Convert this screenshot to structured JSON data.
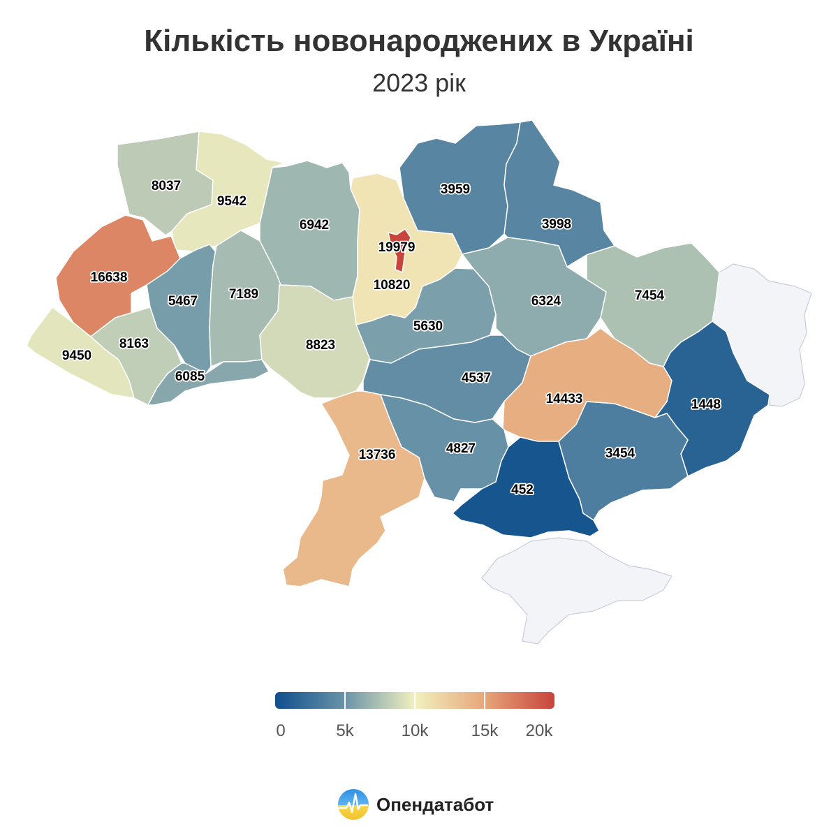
{
  "header": {
    "title": "Кількість новонароджених в Україні",
    "subtitle": "2023 рік"
  },
  "chart_data": {
    "type": "choropleth",
    "title": "Кількість новонароджених в Україні",
    "subtitle": "2023 рік",
    "colorscale": {
      "min": 0,
      "max": 20000,
      "stops": [
        "#0f4f8c",
        "#6a93a8",
        "#f2f0bf",
        "#e6a679",
        "#c8443c"
      ]
    },
    "regions": [
      {
        "name": "Волинська",
        "value": 8037
      },
      {
        "name": "Рівненська",
        "value": 9542
      },
      {
        "name": "Житомирська",
        "value": 6942
      },
      {
        "name": "Київська",
        "value": 10820
      },
      {
        "name": "м. Київ",
        "value": 19979
      },
      {
        "name": "Чернігівська",
        "value": 3959
      },
      {
        "name": "Сумська",
        "value": 3998
      },
      {
        "name": "Львівська",
        "value": 16638
      },
      {
        "name": "Тернопільська",
        "value": 5467
      },
      {
        "name": "Хмельницька",
        "value": 7189
      },
      {
        "name": "Вінницька",
        "value": 8823
      },
      {
        "name": "Черкаська",
        "value": 5630
      },
      {
        "name": "Полтавська",
        "value": 6324
      },
      {
        "name": "Харківська",
        "value": 7454
      },
      {
        "name": "Закарпатська",
        "value": 9450
      },
      {
        "name": "Івано-Франківська",
        "value": 8163
      },
      {
        "name": "Чернівецька",
        "value": 6085
      },
      {
        "name": "Кіровоградська",
        "value": 4537
      },
      {
        "name": "Дніпропетровська",
        "value": 14433
      },
      {
        "name": "Донецька",
        "value": 1448
      },
      {
        "name": "Одеська",
        "value": 13736
      },
      {
        "name": "Миколаївська",
        "value": 4827
      },
      {
        "name": "Запорізька",
        "value": 3454
      },
      {
        "name": "Херсонська",
        "value": 452
      },
      {
        "name": "Луганська",
        "value": null
      },
      {
        "name": "АР Крим",
        "value": null
      }
    ]
  },
  "legend": {
    "ticks": [
      "0",
      "5k",
      "10k",
      "15k",
      "20k"
    ]
  },
  "brand": {
    "name": "Опендатабот"
  }
}
